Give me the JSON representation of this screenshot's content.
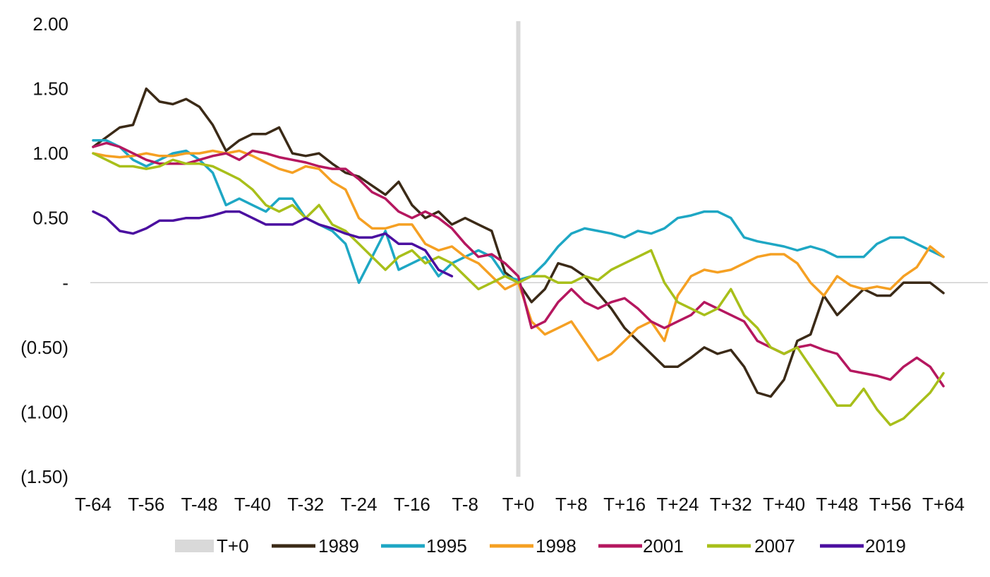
{
  "chart_data": {
    "type": "line",
    "title": "",
    "xlabel": "",
    "ylabel": "",
    "ylim": [
      -1.5,
      2.0
    ],
    "xlim": [
      -64,
      64
    ],
    "grid": false,
    "legend_position": "bottom",
    "y_ticks": [
      {
        "value": 2.0,
        "label": "2.00"
      },
      {
        "value": 1.5,
        "label": "1.50"
      },
      {
        "value": 1.0,
        "label": "1.00"
      },
      {
        "value": 0.5,
        "label": "0.50"
      },
      {
        "value": 0.0,
        "label": "-"
      },
      {
        "value": -0.5,
        "label": "(0.50)"
      },
      {
        "value": -1.0,
        "label": "(1.00)"
      },
      {
        "value": -1.5,
        "label": "(1.50)"
      }
    ],
    "x_ticks": [
      {
        "value": -64,
        "label": "T-64"
      },
      {
        "value": -56,
        "label": "T-56"
      },
      {
        "value": -48,
        "label": "T-48"
      },
      {
        "value": -40,
        "label": "T-40"
      },
      {
        "value": -32,
        "label": "T-32"
      },
      {
        "value": -24,
        "label": "T-24"
      },
      {
        "value": -16,
        "label": "T-16"
      },
      {
        "value": -8,
        "label": "T-8"
      },
      {
        "value": 0,
        "label": "T+0"
      },
      {
        "value": 8,
        "label": "T+8"
      },
      {
        "value": 16,
        "label": "T+16"
      },
      {
        "value": 24,
        "label": "T+24"
      },
      {
        "value": 32,
        "label": "T+32"
      },
      {
        "value": 40,
        "label": "T+40"
      },
      {
        "value": 48,
        "label": "T+48"
      },
      {
        "value": 56,
        "label": "T+56"
      },
      {
        "value": 64,
        "label": "T+64"
      }
    ],
    "reference_line": {
      "name": "T+0",
      "x": 0,
      "color": "#d9d9d9"
    },
    "series": [
      {
        "name": "1989",
        "color": "#3b2a17",
        "x": [
          -64,
          -60,
          -58,
          -56,
          -54,
          -52,
          -50,
          -48,
          -46,
          -44,
          -42,
          -40,
          -38,
          -36,
          -34,
          -32,
          -30,
          -28,
          -26,
          -24,
          -22,
          -20,
          -18,
          -16,
          -14,
          -12,
          -10,
          -8,
          -6,
          -4,
          -2,
          0,
          2,
          4,
          6,
          8,
          10,
          12,
          14,
          16,
          18,
          20,
          22,
          24,
          26,
          28,
          30,
          32,
          34,
          36,
          38,
          40,
          42,
          44,
          46,
          48,
          50,
          52,
          54,
          56,
          58,
          60,
          62,
          64
        ],
        "values": [
          1.05,
          1.2,
          1.22,
          1.5,
          1.4,
          1.38,
          1.42,
          1.36,
          1.22,
          1.02,
          1.1,
          1.15,
          1.15,
          1.2,
          1.0,
          0.98,
          1.0,
          0.92,
          0.85,
          0.82,
          0.75,
          0.68,
          0.78,
          0.6,
          0.5,
          0.55,
          0.45,
          0.5,
          0.45,
          0.4,
          0.08,
          0.0,
          -0.15,
          -0.05,
          0.15,
          0.12,
          0.05,
          -0.08,
          -0.2,
          -0.35,
          -0.45,
          -0.55,
          -0.65,
          -0.65,
          -0.58,
          -0.5,
          -0.55,
          -0.52,
          -0.65,
          -0.85,
          -0.88,
          -0.75,
          -0.45,
          -0.4,
          -0.1,
          -0.25,
          -0.15,
          -0.05,
          -0.1,
          -0.1,
          0.0,
          0.0,
          0.0,
          -0.08
        ]
      },
      {
        "name": "1995",
        "color": "#1ea7c4",
        "x": [
          -64,
          -62,
          -60,
          -58,
          -56,
          -54,
          -52,
          -50,
          -48,
          -46,
          -44,
          -42,
          -40,
          -38,
          -36,
          -34,
          -32,
          -30,
          -28,
          -26,
          -24,
          -22,
          -20,
          -18,
          -16,
          -14,
          -12,
          -10,
          -8,
          -6,
          -4,
          -2,
          0,
          2,
          4,
          6,
          8,
          10,
          12,
          14,
          16,
          18,
          20,
          22,
          24,
          26,
          28,
          30,
          32,
          34,
          36,
          38,
          40,
          42,
          44,
          46,
          48,
          50,
          52,
          54,
          56,
          58,
          60,
          62,
          64
        ],
        "values": [
          1.1,
          1.1,
          1.05,
          0.95,
          0.9,
          0.95,
          1.0,
          1.02,
          0.95,
          0.85,
          0.6,
          0.65,
          0.6,
          0.55,
          0.65,
          0.65,
          0.5,
          0.45,
          0.4,
          0.3,
          0.0,
          0.2,
          0.4,
          0.1,
          0.15,
          0.2,
          0.05,
          0.15,
          0.2,
          0.25,
          0.2,
          0.05,
          0.02,
          0.05,
          0.15,
          0.28,
          0.38,
          0.42,
          0.4,
          0.38,
          0.35,
          0.4,
          0.38,
          0.42,
          0.5,
          0.52,
          0.55,
          0.55,
          0.5,
          0.35,
          0.32,
          0.3,
          0.28,
          0.25,
          0.28,
          0.25,
          0.2,
          0.2,
          0.2,
          0.3,
          0.35,
          0.35,
          0.3,
          0.25,
          0.2
        ]
      },
      {
        "name": "1998",
        "color": "#f5a023",
        "x": [
          -64,
          -62,
          -60,
          -58,
          -56,
          -54,
          -52,
          -50,
          -48,
          -46,
          -44,
          -42,
          -40,
          -38,
          -36,
          -34,
          -32,
          -30,
          -28,
          -26,
          -24,
          -22,
          -20,
          -18,
          -16,
          -14,
          -12,
          -10,
          -8,
          -6,
          -4,
          -2,
          0,
          2,
          4,
          6,
          8,
          10,
          12,
          14,
          16,
          18,
          20,
          22,
          24,
          26,
          28,
          30,
          32,
          34,
          36,
          38,
          40,
          42,
          44,
          46,
          48,
          50,
          52,
          54,
          56,
          58,
          60,
          62,
          64
        ],
        "values": [
          1.0,
          0.98,
          0.97,
          0.98,
          1.0,
          0.98,
          0.98,
          1.0,
          1.0,
          1.02,
          1.0,
          1.02,
          0.98,
          0.93,
          0.88,
          0.85,
          0.9,
          0.88,
          0.78,
          0.72,
          0.5,
          0.42,
          0.42,
          0.45,
          0.45,
          0.3,
          0.25,
          0.28,
          0.2,
          0.15,
          0.05,
          -0.05,
          0.0,
          -0.3,
          -0.4,
          -0.35,
          -0.3,
          -0.45,
          -0.6,
          -0.55,
          -0.45,
          -0.35,
          -0.3,
          -0.45,
          -0.1,
          0.05,
          0.1,
          0.08,
          0.1,
          0.15,
          0.2,
          0.22,
          0.22,
          0.15,
          0.0,
          -0.1,
          0.05,
          -0.02,
          -0.05,
          -0.03,
          -0.05,
          0.05,
          0.12,
          0.28,
          0.2
        ]
      },
      {
        "name": "2001",
        "color": "#b5175f",
        "x": [
          -64,
          -62,
          -60,
          -58,
          -56,
          -54,
          -52,
          -50,
          -48,
          -46,
          -44,
          -42,
          -40,
          -38,
          -36,
          -34,
          -32,
          -30,
          -28,
          -26,
          -24,
          -22,
          -20,
          -18,
          -16,
          -14,
          -12,
          -10,
          -8,
          -6,
          -4,
          -2,
          0,
          2,
          4,
          6,
          8,
          10,
          12,
          14,
          16,
          18,
          20,
          22,
          24,
          26,
          28,
          30,
          32,
          34,
          36,
          38,
          40,
          42,
          44,
          46,
          48,
          50,
          52,
          54,
          56,
          58,
          60,
          62,
          64
        ],
        "values": [
          1.05,
          1.08,
          1.05,
          1.0,
          0.95,
          0.92,
          0.92,
          0.92,
          0.95,
          0.98,
          1.0,
          0.95,
          1.02,
          1.0,
          0.97,
          0.95,
          0.93,
          0.9,
          0.88,
          0.88,
          0.8,
          0.7,
          0.65,
          0.55,
          0.5,
          0.55,
          0.5,
          0.42,
          0.3,
          0.2,
          0.22,
          0.15,
          0.05,
          -0.35,
          -0.3,
          -0.15,
          -0.05,
          -0.15,
          -0.2,
          -0.15,
          -0.12,
          -0.2,
          -0.3,
          -0.35,
          -0.3,
          -0.25,
          -0.15,
          -0.2,
          -0.25,
          -0.3,
          -0.45,
          -0.5,
          -0.55,
          -0.5,
          -0.48,
          -0.52,
          -0.55,
          -0.68,
          -0.7,
          -0.72,
          -0.75,
          -0.65,
          -0.58,
          -0.65,
          -0.8
        ]
      },
      {
        "name": "2007",
        "color": "#a8bf1a",
        "x": [
          -64,
          -62,
          -60,
          -58,
          -56,
          -54,
          -52,
          -50,
          -48,
          -46,
          -44,
          -42,
          -40,
          -38,
          -36,
          -34,
          -32,
          -30,
          -28,
          -26,
          -24,
          -22,
          -20,
          -18,
          -16,
          -14,
          -12,
          -10,
          -8,
          -6,
          -4,
          -2,
          0,
          2,
          4,
          6,
          8,
          10,
          12,
          14,
          16,
          18,
          20,
          22,
          24,
          26,
          28,
          30,
          32,
          34,
          36,
          38,
          40,
          42,
          44,
          46,
          48,
          50,
          52,
          54,
          56,
          58,
          60,
          62,
          64
        ],
        "values": [
          1.0,
          0.95,
          0.9,
          0.9,
          0.88,
          0.9,
          0.95,
          0.92,
          0.92,
          0.9,
          0.85,
          0.8,
          0.72,
          0.6,
          0.55,
          0.6,
          0.5,
          0.6,
          0.45,
          0.4,
          0.3,
          0.2,
          0.1,
          0.2,
          0.25,
          0.15,
          0.2,
          0.15,
          0.05,
          -0.05,
          0.0,
          0.05,
          0.0,
          0.05,
          0.05,
          0.0,
          0.0,
          0.05,
          0.02,
          0.1,
          0.15,
          0.2,
          0.25,
          0.0,
          -0.15,
          -0.2,
          -0.25,
          -0.2,
          -0.05,
          -0.25,
          -0.35,
          -0.5,
          -0.55,
          -0.5,
          -0.65,
          -0.8,
          -0.95,
          -0.95,
          -0.82,
          -0.98,
          -1.1,
          -1.05,
          -0.95,
          -0.85,
          -0.7
        ]
      },
      {
        "name": "2019",
        "color": "#4b0fa0",
        "x": [
          -64,
          -62,
          -60,
          -58,
          -56,
          -54,
          -52,
          -50,
          -48,
          -46,
          -44,
          -42,
          -40,
          -38,
          -36,
          -34,
          -32,
          -30,
          -28,
          -26,
          -24,
          -22,
          -20,
          -18,
          -16,
          -14,
          -12,
          -10
        ],
        "values": [
          0.55,
          0.5,
          0.4,
          0.38,
          0.42,
          0.48,
          0.48,
          0.5,
          0.5,
          0.52,
          0.55,
          0.55,
          0.5,
          0.45,
          0.45,
          0.45,
          0.5,
          0.45,
          0.42,
          0.38,
          0.35,
          0.35,
          0.38,
          0.3,
          0.3,
          0.25,
          0.1,
          0.05
        ]
      }
    ]
  }
}
